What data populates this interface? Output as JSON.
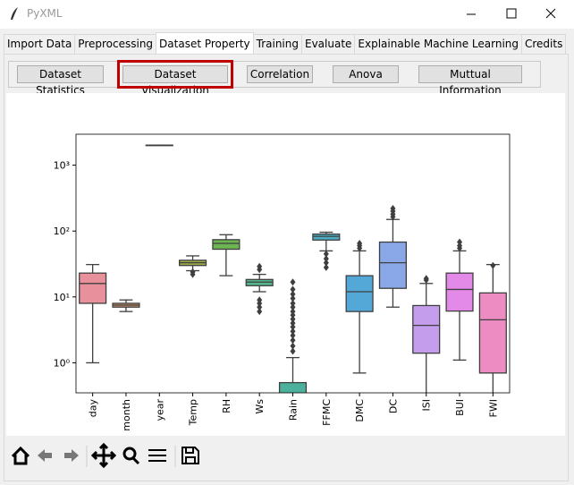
{
  "window": {
    "title": "PyXML"
  },
  "tabs": [
    "Import Data",
    "Preprocessing",
    "Dataset Property",
    "Training",
    "Evaluate",
    "Explainable Machine Learning",
    "Credits"
  ],
  "active_tab": 2,
  "buttons": [
    "Dataset Statistics",
    "Dataset Visualization",
    "Correlation",
    "Anova",
    "Muttual Information"
  ],
  "highlighted_button": 1,
  "chart_data": {
    "type": "box",
    "yscale": "log",
    "ylim": [
      0.35,
      2950
    ],
    "yticks": [
      {
        "value": 1,
        "label": "10⁰"
      },
      {
        "value": 10,
        "label": "10¹"
      },
      {
        "value": 100,
        "label": "10²"
      },
      {
        "value": 1000,
        "label": "10³"
      }
    ],
    "categories": [
      "day",
      "month",
      "year",
      "Temp",
      "RH",
      "Ws",
      "Rain",
      "FFMC",
      "DMC",
      "DC",
      "ISI",
      "BUI",
      "FWI"
    ],
    "boxes": [
      {
        "color": "#e8909b",
        "low": 1,
        "q1": 8,
        "median": 16,
        "q3": 23,
        "high": 31,
        "outliers": []
      },
      {
        "color": "#d59a6e",
        "low": 6,
        "q1": 7,
        "median": 7.5,
        "q3": 8,
        "high": 9,
        "outliers": []
      },
      {
        "color": "#b8a44a",
        "low": 2012,
        "q1": 2012,
        "median": 2012,
        "q3": 2012,
        "high": 2012,
        "outliers": []
      },
      {
        "color": "#9aac49",
        "low": 25,
        "q1": 30,
        "median": 33,
        "q3": 36,
        "high": 42,
        "outliers": [
          22,
          24
        ]
      },
      {
        "color": "#6db552",
        "low": 21,
        "q1": 53,
        "median": 65,
        "q3": 74,
        "high": 88,
        "outliers": []
      },
      {
        "color": "#55b58c",
        "low": 12,
        "q1": 14.8,
        "median": 16.8,
        "q3": 18.4,
        "high": 22,
        "outliers": [
          26,
          29,
          6,
          7,
          8,
          9
        ]
      },
      {
        "color": "#4cb09c",
        "low": 0,
        "q1": 0,
        "median": 0,
        "q3": 0.5,
        "high": 1.2,
        "outliers": [
          1.5,
          1.8,
          2.2,
          2.6,
          3,
          3.5,
          4,
          4.6,
          5.3,
          6,
          7,
          8,
          9.5,
          11,
          13,
          16.8
        ]
      },
      {
        "color": "#4cadc2",
        "low": 50,
        "q1": 73,
        "median": 83,
        "q3": 90,
        "high": 96,
        "outliers": [
          28,
          33,
          38,
          45
        ]
      },
      {
        "color": "#54a8d8",
        "low": 0.7,
        "q1": 6,
        "median": 12,
        "q3": 21,
        "high": 50,
        "outliers": [
          55,
          60,
          65
        ]
      },
      {
        "color": "#8aa8e8",
        "low": 7,
        "q1": 13.5,
        "median": 33,
        "q3": 68,
        "high": 150,
        "outliers": [
          165,
          180,
          200,
          220
        ]
      },
      {
        "color": "#c59ded",
        "low": 0,
        "q1": 1.4,
        "median": 3.7,
        "q3": 7.4,
        "high": 16,
        "outliers": [
          18,
          19
        ]
      },
      {
        "color": "#e389e8",
        "low": 1.1,
        "q1": 6.1,
        "median": 13,
        "q3": 23,
        "high": 50,
        "outliers": [
          55,
          60,
          68
        ]
      },
      {
        "color": "#ec8cc3",
        "low": 0,
        "q1": 0.7,
        "median": 4.5,
        "q3": 11.5,
        "high": 31,
        "outliers": [
          30
        ]
      }
    ]
  }
}
